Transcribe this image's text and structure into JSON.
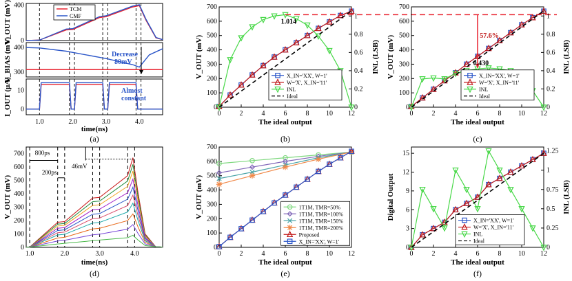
{
  "captions": [
    "(a)",
    "(b)",
    "(c)",
    "(d)",
    "(e)",
    "(f)"
  ],
  "chart_data": [
    {
      "id": "a",
      "type": "line",
      "legend": [
        "TCM",
        "CMF"
      ],
      "colors": {
        "TCM": "#e8212d",
        "CMF": "#2a55c8"
      },
      "xlabel": "time(ns)",
      "x_ticks": [
        "1.0",
        "2.0",
        "3.0",
        "4.0"
      ],
      "xlim": [
        0.6,
        4.7
      ],
      "panels": [
        {
          "ylabel": "V_OUT (mV)",
          "y_ticks": [
            "400",
            "0"
          ],
          "ylim": [
            0,
            420
          ],
          "TCM": {
            "x": [
              0.6,
              1.0,
              1.8,
              2.0,
              2.8,
              3.0,
              3.8,
              4.0,
              4.2,
              4.5,
              4.7
            ],
            "y": [
              0,
              5,
              120,
              125,
              260,
              270,
              380,
              395,
              230,
              30,
              10
            ]
          },
          "CMF": {
            "x": [
              0.6,
              1.0,
              1.8,
              2.0,
              2.8,
              3.0,
              3.8,
              4.0,
              4.2,
              4.5,
              4.7
            ],
            "y": [
              0,
              5,
              130,
              135,
              270,
              280,
              390,
              405,
              240,
              35,
              10
            ]
          }
        },
        {
          "ylabel": "V_BIAS (mV)",
          "y_ticks": [
            "400",
            "300"
          ],
          "ylim": [
            280,
            420
          ],
          "TCM": {
            "x": [
              0.6,
              4.0,
              4.7
            ],
            "y": [
              310,
              310,
              310
            ]
          },
          "CMF": {
            "x": [
              0.6,
              1.0,
              1.8,
              2.0,
              2.8,
              3.0,
              3.8,
              4.0,
              4.3,
              4.7
            ],
            "y": [
              400,
              398,
              385,
              380,
              360,
              355,
              330,
              320,
              370,
              395
            ]
          }
        },
        {
          "ylabel": "I_OUT (μA)",
          "y_ticks": [
            "10",
            "0"
          ],
          "ylim": [
            -3,
            16
          ],
          "TCM": {
            "x": [
              0.6,
              1.0,
              1.05,
              1.9,
              1.95,
              2.05,
              2.1,
              2.9,
              2.95,
              3.05,
              3.1,
              3.9,
              3.95,
              4.05,
              4.1,
              4.7
            ],
            "y": [
              0,
              0,
              13,
              13,
              0,
              0,
              13,
              13,
              0,
              0,
              13,
              13,
              0,
              0,
              0,
              0
            ]
          },
          "CMF": {
            "x": [
              0.6,
              1.0,
              1.05,
              1.9,
              1.95,
              2.05,
              2.1,
              2.9,
              2.95,
              3.05,
              3.1,
              3.9,
              3.95,
              4.05,
              4.1,
              4.7
            ],
            "y": [
              0,
              0,
              14,
              14,
              0,
              0,
              14,
              14,
              0,
              0,
              14,
              14,
              0,
              0,
              0,
              0
            ]
          }
        }
      ],
      "annotations": [
        "Decrease",
        "80mV",
        "Almost",
        "constant"
      ]
    },
    {
      "id": "b",
      "type": "line",
      "xlabel": "The ideal output",
      "ylabel": "V_OUT (mV)",
      "y2label": "INL (LSB)",
      "xlim": [
        0,
        12
      ],
      "ylim": [
        0,
        700
      ],
      "y2lim": [
        0,
        1.1
      ],
      "x_ticks": [
        0,
        2,
        4,
        6,
        8,
        10,
        12
      ],
      "y_ticks": [
        0,
        100,
        200,
        300,
        400,
        500,
        600,
        700
      ],
      "y2_ticks": [
        "0",
        "0.2",
        "0.4",
        "0.6",
        "0.8",
        "1"
      ],
      "x": [
        0,
        1,
        2,
        3,
        4,
        5,
        6,
        7,
        8,
        9,
        10,
        11,
        12
      ],
      "series": [
        {
          "name": "X_IN='XX', W=1'",
          "marker": "square",
          "color": "#2a55c8",
          "values": [
            5,
            85,
            155,
            225,
            290,
            350,
            400,
            450,
            500,
            550,
            595,
            640,
            670
          ]
        },
        {
          "name": "W='X', X_IN='11'",
          "marker": "triangle-up",
          "color": "#c01818",
          "values": [
            5,
            85,
            155,
            225,
            290,
            350,
            400,
            450,
            500,
            550,
            595,
            640,
            670
          ]
        },
        {
          "name": "INL",
          "marker": "triangle-down",
          "color": "#48d848",
          "axis": "y2",
          "values": [
            0,
            0.52,
            0.76,
            0.88,
            0.96,
            1.0,
            1.014,
            0.97,
            0.9,
            0.78,
            0.62,
            0.4,
            0
          ]
        },
        {
          "name": "Ideal",
          "style": "dashed",
          "color": "#000000",
          "values": [
            0,
            56,
            112,
            168,
            224,
            280,
            336,
            392,
            448,
            504,
            560,
            616,
            672
          ]
        }
      ],
      "annotations": [
        "1.014"
      ]
    },
    {
      "id": "c",
      "type": "line",
      "xlabel": "The ideal output",
      "ylabel": "V_OUT (mV)",
      "y2label": "INL (LSB)",
      "xlim": [
        0,
        12
      ],
      "ylim": [
        0,
        700
      ],
      "y2lim": [
        0,
        1.1
      ],
      "x_ticks": [
        0,
        2,
        4,
        6,
        8,
        10,
        12
      ],
      "y_ticks": [
        0,
        100,
        200,
        300,
        400,
        500,
        600,
        700
      ],
      "y2_ticks": [
        "0",
        "0.2",
        "0.4",
        "0.6",
        "0.8",
        "1"
      ],
      "x": [
        0,
        1,
        2,
        3,
        4,
        5,
        6,
        7,
        8,
        9,
        10,
        11,
        12
      ],
      "series": [
        {
          "name": "X_IN='XX', W=1'",
          "marker": "square",
          "color": "#2a55c8",
          "values": [
            5,
            65,
            125,
            185,
            240,
            300,
            355,
            410,
            465,
            520,
            575,
            625,
            670
          ]
        },
        {
          "name": "W='X', X_IN='11'",
          "marker": "triangle-up",
          "color": "#c01818",
          "values": [
            5,
            65,
            125,
            185,
            240,
            300,
            355,
            410,
            465,
            520,
            575,
            625,
            670
          ]
        },
        {
          "name": "INL",
          "marker": "triangle-down",
          "color": "#48d848",
          "axis": "y2",
          "values": [
            0,
            0.31,
            0.32,
            0.31,
            0.37,
            0.4,
            0.42,
            0.43,
            0.42,
            0.4,
            0.34,
            0.18,
            0
          ]
        },
        {
          "name": "Ideal",
          "style": "dashed",
          "color": "#000000",
          "values": [
            0,
            56,
            112,
            168,
            224,
            280,
            336,
            392,
            448,
            504,
            560,
            616,
            672
          ]
        }
      ],
      "annotations": [
        "57.6%",
        "0.430"
      ]
    },
    {
      "id": "d",
      "type": "line",
      "xlabel": "time(ns)",
      "ylabel": "V_OUT (mV)",
      "xlim": [
        0.9,
        4.8
      ],
      "ylim": [
        0,
        750
      ],
      "x_ticks": [
        "1.0",
        "2.0",
        "3.0",
        "4.0"
      ],
      "y_ticks": [
        "0",
        "100",
        "200",
        "300",
        "400",
        "500",
        "600",
        "700"
      ],
      "series_levels_mV": [
        670,
        620,
        570,
        510,
        450,
        390,
        330,
        250,
        170,
        90
      ],
      "annotations": [
        "800ps",
        "200ps",
        "46mV"
      ]
    },
    {
      "id": "e",
      "type": "line",
      "xlabel": "The ideal output",
      "ylabel": "V_OUT (mV)",
      "xlim": [
        0,
        12
      ],
      "ylim": [
        0,
        700
      ],
      "x_ticks": [
        0,
        2,
        4,
        6,
        8,
        10,
        12
      ],
      "y_ticks": [
        0,
        100,
        200,
        300,
        400,
        500,
        600,
        700
      ],
      "x": [
        0,
        1,
        2,
        3,
        4,
        5,
        6,
        7,
        8,
        9,
        10,
        11,
        12
      ],
      "series": [
        {
          "name": "1T1M, TMR=50%",
          "marker": "circle",
          "color": "#7ed87e",
          "x": [
            0,
            3,
            6,
            9,
            12
          ],
          "values": [
            585,
            605,
            625,
            645,
            665
          ]
        },
        {
          "name": "1T1M, TMR=100%",
          "marker": "diamond",
          "color": "#8066b8",
          "x": [
            0,
            3,
            6,
            9,
            12
          ],
          "values": [
            520,
            560,
            600,
            635,
            665
          ]
        },
        {
          "name": "1T1M, TMR=150%",
          "marker": "x",
          "color": "#4aa5a8",
          "x": [
            0,
            3,
            6,
            9,
            12
          ],
          "values": [
            480,
            525,
            575,
            625,
            665
          ]
        },
        {
          "name": "1T1M, TMR=200%",
          "marker": "star",
          "color": "#f08848",
          "x": [
            0,
            3,
            6,
            9,
            12
          ],
          "values": [
            440,
            500,
            560,
            615,
            665
          ]
        },
        {
          "name": "Proposed",
          "marker": "triangle-up",
          "color": "#c01818",
          "values": [
            5,
            70,
            130,
            190,
            250,
            310,
            365,
            420,
            475,
            530,
            580,
            625,
            670
          ]
        },
        {
          "name": "X_IN='XX', W=1'",
          "marker": "square",
          "color": "#2a55c8",
          "values": [
            5,
            70,
            130,
            190,
            250,
            310,
            365,
            420,
            475,
            530,
            580,
            625,
            670
          ]
        }
      ]
    },
    {
      "id": "f",
      "type": "line",
      "xlabel": "The ideal output",
      "ylabel": "Digital Output",
      "y2label": "INL (LSB)",
      "xlim": [
        0,
        12
      ],
      "ylim": [
        0,
        16
      ],
      "y2lim": [
        0,
        1.3
      ],
      "x_ticks": [
        0,
        2,
        4,
        6,
        8,
        10,
        12
      ],
      "y_ticks": [
        0,
        3,
        6,
        9,
        12,
        15
      ],
      "y2_ticks": [
        "0",
        "0.25",
        "0.5",
        "0.75",
        "1",
        "1.25"
      ],
      "x": [
        0,
        1,
        2,
        3,
        4,
        5,
        6,
        7,
        8,
        9,
        10,
        11,
        12
      ],
      "series": [
        {
          "name": "X_IN='XX', W=1'",
          "marker": "square",
          "color": "#2a55c8",
          "values": [
            0,
            2,
            3,
            4,
            6,
            7,
            8,
            10,
            11,
            12,
            13,
            14,
            15
          ]
        },
        {
          "name": "W='X', X_IN='11'",
          "marker": "triangle-up",
          "color": "#c01818",
          "values": [
            0,
            2,
            3,
            4,
            6,
            7,
            8,
            10,
            11,
            12,
            13,
            14,
            15
          ]
        },
        {
          "name": "INL",
          "marker": "triangle-down",
          "color": "#48d848",
          "axis": "y2",
          "values": [
            0,
            0.75,
            0.5,
            0.25,
            1.0,
            0.75,
            0.5,
            1.25,
            1.0,
            0.75,
            0.5,
            0.25,
            0
          ]
        },
        {
          "name": "Ideal",
          "style": "dashed",
          "color": "#000000",
          "values": [
            0,
            1.25,
            2.5,
            3.75,
            5,
            6.25,
            7.5,
            8.75,
            10,
            11.25,
            12.5,
            13.75,
            15
          ]
        }
      ]
    }
  ]
}
